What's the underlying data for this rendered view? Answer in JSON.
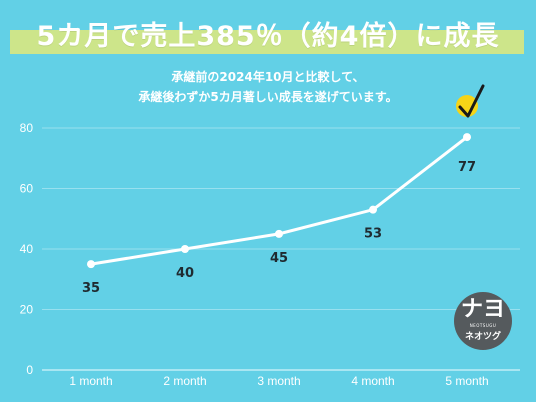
{
  "header": {
    "title": "5カ月で売上385％（約4倍）に成長",
    "subtitle_line1": "承継前の2024年10月と比較して、",
    "subtitle_line2": "承継後わずか5カ月著しい成長を遂げています。"
  },
  "logo": {
    "mark": "ナヨ",
    "small_text": "NEOTSUGU",
    "name": "ネオツグ"
  },
  "colors": {
    "background": "#62d0e6",
    "title_band": "#cde58a",
    "line": "#ffffff",
    "check_circle": "#f5d417",
    "logo_bg": "#555a5d"
  },
  "chart_data": {
    "type": "line",
    "categories": [
      "1 month",
      "2 month",
      "3 month",
      "4 month",
      "5 month"
    ],
    "values": [
      35,
      40,
      45,
      53,
      77
    ],
    "data_labels": [
      "35",
      "40",
      "45",
      "53",
      "77"
    ],
    "yticks": [
      "0",
      "20",
      "40",
      "60",
      "80"
    ],
    "ylim": [
      0,
      80
    ],
    "grid": true,
    "annotation": "checkmark-icon on last point"
  }
}
